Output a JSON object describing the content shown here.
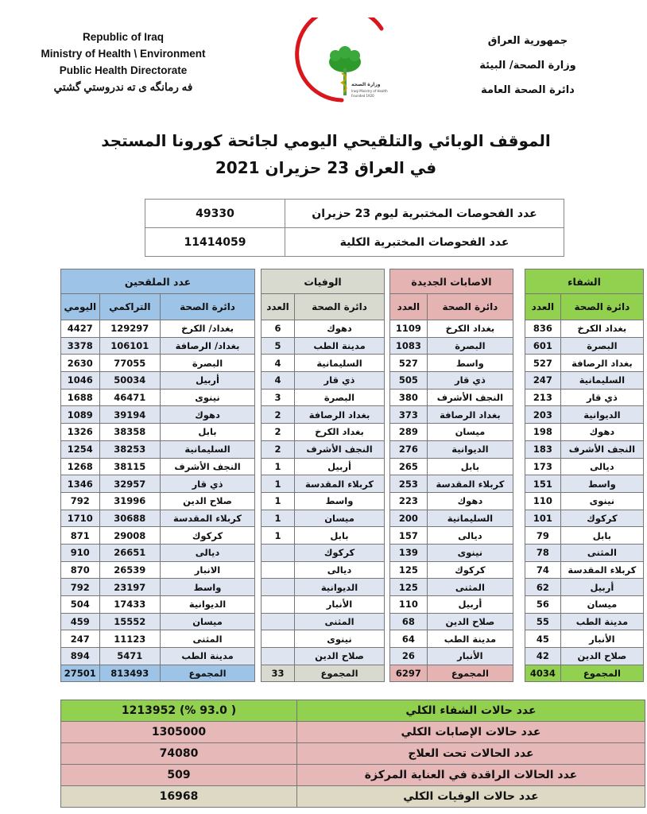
{
  "header": {
    "english_lines": [
      "Republic of Iraq",
      "Ministry of Health \\ Environment",
      "Public Health Directorate",
      "فه رمانگه ى ته ندروستي گشتي"
    ],
    "arabic_lines": [
      "جمهورية العراق",
      "وزارة الصحة/ البيئة",
      "دائرة الصحة العامة"
    ],
    "logo_text": [
      "وزارة الصحة العراقية",
      "Iraqi Ministry of Health",
      "Founded 1920"
    ]
  },
  "title": {
    "line1": "الموقف الوبائي والتلقيحي اليومي لجائحة كورونا المستجد",
    "line2": "في العراق 23  حزيران 2021"
  },
  "tests": [
    {
      "label": "عدد الفحوصات المختبرية  ليوم 23 حزيران",
      "value": "49330"
    },
    {
      "label": "عدد الفحوصات المختبرية الكلية",
      "value": "11414059"
    }
  ],
  "colors": {
    "recovery": "#92d050",
    "cases": "#e6b3b3",
    "deaths": "#d8dad0",
    "vaccinated": "#9dc3e6",
    "row_alt": "#dfe4f1",
    "summary_recovery": "#92d050",
    "summary_cases": "#e6b8b7",
    "summary_deaths": "#ddd9c4"
  },
  "recovery": {
    "title": "الشفاء",
    "columns": [
      "دائرة الصحة",
      "العدد"
    ],
    "rows": [
      [
        "بغداد الكرخ",
        "836"
      ],
      [
        "البصرة",
        "601"
      ],
      [
        "بغداد الرصافة",
        "527"
      ],
      [
        "السليمانية",
        "247"
      ],
      [
        "ذي قار",
        "213"
      ],
      [
        "الديوانية",
        "203"
      ],
      [
        "دهوك",
        "198"
      ],
      [
        "النجف الأشرف",
        "183"
      ],
      [
        "ديالى",
        "173"
      ],
      [
        "واسط",
        "151"
      ],
      [
        "نينوى",
        "110"
      ],
      [
        "كركوك",
        "101"
      ],
      [
        "بابل",
        "79"
      ],
      [
        "المثنى",
        "78"
      ],
      [
        "كربلاء المقدسة",
        "74"
      ],
      [
        "أربيل",
        "62"
      ],
      [
        "ميسان",
        "56"
      ],
      [
        "مدينة الطب",
        "55"
      ],
      [
        "الأنبار",
        "45"
      ],
      [
        "صلاح الدين",
        "42"
      ]
    ],
    "total": [
      "المجموع",
      "4034"
    ]
  },
  "cases": {
    "title": "الاصابات الجديدة",
    "columns": [
      "دائرة الصحة",
      "العدد"
    ],
    "rows": [
      [
        "بغداد الكرخ",
        "1109"
      ],
      [
        "البصرة",
        "1083"
      ],
      [
        "واسط",
        "527"
      ],
      [
        "ذي قار",
        "505"
      ],
      [
        "النجف الأشرف",
        "380"
      ],
      [
        "بغداد الرصافة",
        "373"
      ],
      [
        "ميسان",
        "289"
      ],
      [
        "الديوانية",
        "276"
      ],
      [
        "بابل",
        "265"
      ],
      [
        "كربلاء المقدسة",
        "253"
      ],
      [
        "دهوك",
        "223"
      ],
      [
        "السليمانية",
        "200"
      ],
      [
        "ديالى",
        "157"
      ],
      [
        "نينوى",
        "139"
      ],
      [
        "كركوك",
        "125"
      ],
      [
        "المثنى",
        "125"
      ],
      [
        "أربيل",
        "110"
      ],
      [
        "صلاح الدين",
        "68"
      ],
      [
        "مدينة الطب",
        "64"
      ],
      [
        "الأنبار",
        "26"
      ]
    ],
    "total": [
      "المجموع",
      "6297"
    ]
  },
  "deaths": {
    "title": "الوفيات",
    "columns": [
      "دائرة الصحة",
      "العدد"
    ],
    "rows": [
      [
        "دهوك",
        "6"
      ],
      [
        "مدينة الطب",
        "5"
      ],
      [
        "السليمانية",
        "4"
      ],
      [
        "ذي قار",
        "4"
      ],
      [
        "البصرة",
        "3"
      ],
      [
        "بغداد الرصافة",
        "2"
      ],
      [
        "بغداد الكرخ",
        "2"
      ],
      [
        "النجف الأشرف",
        "2"
      ],
      [
        "أربيل",
        "1"
      ],
      [
        "كربلاء المقدسة",
        "1"
      ],
      [
        "واسط",
        "1"
      ],
      [
        "ميسان",
        "1"
      ],
      [
        "بابل",
        "1"
      ],
      [
        "كركوك",
        ""
      ],
      [
        "ديالى",
        ""
      ],
      [
        "الديوانية",
        ""
      ],
      [
        "الأنبار",
        ""
      ],
      [
        "المثنى",
        ""
      ],
      [
        "نينوى",
        ""
      ],
      [
        "صلاح الدين",
        ""
      ]
    ],
    "total": [
      "المجموع",
      "33"
    ]
  },
  "vaccinated": {
    "title": "عدد الملقحين",
    "columns": [
      "دائرة الصحة",
      "التراكمي",
      "اليومي"
    ],
    "rows": [
      [
        "بغداد/ الكرخ",
        "129297",
        "4427"
      ],
      [
        "بغداد/ الرصافة",
        "106101",
        "3378"
      ],
      [
        "البصرة",
        "77055",
        "2630"
      ],
      [
        "أربيل",
        "50034",
        "1046"
      ],
      [
        "نينوى",
        "46471",
        "1688"
      ],
      [
        "دهوك",
        "39194",
        "1089"
      ],
      [
        "بابل",
        "38358",
        "1326"
      ],
      [
        "السليمانية",
        "38253",
        "1254"
      ],
      [
        "النجف الأشرف",
        "38115",
        "1268"
      ],
      [
        "ذي قار",
        "32957",
        "1346"
      ],
      [
        "صلاح الدين",
        "31996",
        "792"
      ],
      [
        "كربلاء المقدسة",
        "30688",
        "1710"
      ],
      [
        "كركوك",
        "29008",
        "871"
      ],
      [
        "ديالى",
        "26651",
        "910"
      ],
      [
        "الانبار",
        "26539",
        "870"
      ],
      [
        "واسط",
        "23197",
        "792"
      ],
      [
        "الديوانية",
        "17433",
        "504"
      ],
      [
        "ميسان",
        "15552",
        "459"
      ],
      [
        "المثنى",
        "11123",
        "247"
      ],
      [
        "مدينة الطب",
        "5471",
        "894"
      ]
    ],
    "total": [
      "المجموع",
      "813493",
      "27501"
    ]
  },
  "summary": [
    {
      "label": "عدد حالات الشفاء الكلي",
      "value": "( 93.0 %)  1213952",
      "tone": "summary_recovery"
    },
    {
      "label": "عدد حالات الإصابات الكلي",
      "value": "1305000",
      "tone": "summary_cases"
    },
    {
      "label": "عدد الحالات تحت العلاج",
      "value": "74080",
      "tone": "summary_cases"
    },
    {
      "label": "عدد الحالات الراقدة في العناية المركزة",
      "value": "509",
      "tone": "summary_cases"
    },
    {
      "label": "عدد حالات الوفيات الكلي",
      "value": "16968",
      "tone": "summary_deaths"
    }
  ]
}
